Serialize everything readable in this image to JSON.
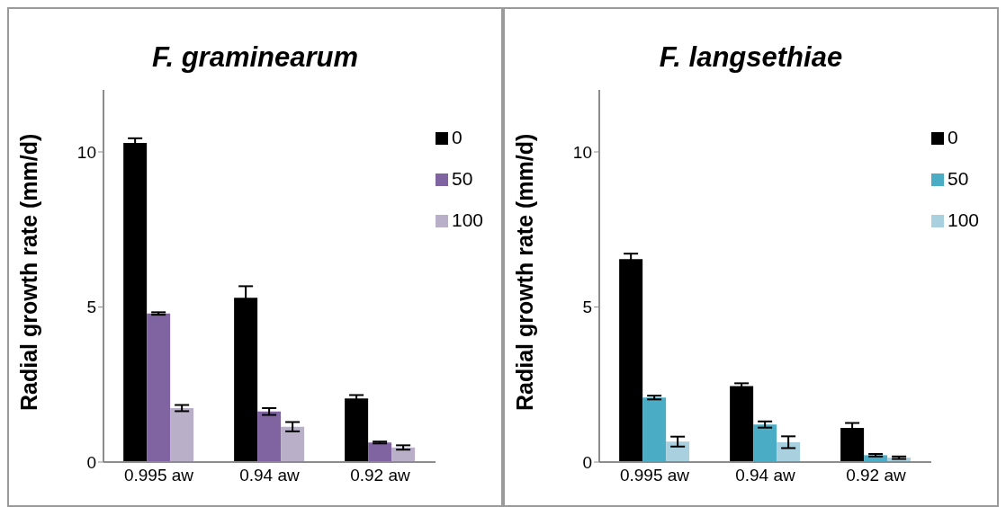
{
  "chart_data": [
    {
      "type": "bar",
      "title": "F. graminearum",
      "ylabel": "Radial growth rate (mm/d)",
      "categories": [
        "0.995 aw",
        "0.94 aw",
        "0.92 aw"
      ],
      "ylim": [
        0,
        12
      ],
      "yticks": [
        0,
        5,
        10
      ],
      "grid": false,
      "legend": "top right",
      "series": [
        {
          "name": "0",
          "color": "#000000",
          "values": [
            10.29,
            5.3,
            2.05
          ],
          "errors": [
            0.15,
            0.37,
            0.11
          ]
        },
        {
          "name": "50",
          "color": "#8064a2",
          "values": [
            4.79,
            1.63,
            0.63
          ],
          "errors": [
            0.04,
            0.11,
            0.03
          ]
        },
        {
          "name": "100",
          "color": "#b9afc9",
          "values": [
            1.74,
            1.14,
            0.47
          ],
          "errors": [
            0.1,
            0.15,
            0.07
          ]
        }
      ]
    },
    {
      "type": "bar",
      "title": "F. langsethiae",
      "ylabel": "Radial growth rate (mm/d)",
      "categories": [
        "0.995 aw",
        "0.94 aw",
        "0.92 aw"
      ],
      "ylim": [
        0,
        12
      ],
      "yticks": [
        0,
        5,
        10
      ],
      "grid": false,
      "legend": "top right",
      "series": [
        {
          "name": "0",
          "color": "#000000",
          "values": [
            6.54,
            2.45,
            1.1
          ],
          "errors": [
            0.18,
            0.09,
            0.16
          ]
        },
        {
          "name": "50",
          "color": "#4bacc6",
          "values": [
            2.08,
            1.21,
            0.22
          ],
          "errors": [
            0.06,
            0.1,
            0.04
          ]
        },
        {
          "name": "100",
          "color": "#a9d0de",
          "values": [
            0.66,
            0.64,
            0.14
          ],
          "errors": [
            0.16,
            0.19,
            0.04
          ]
        }
      ]
    }
  ]
}
